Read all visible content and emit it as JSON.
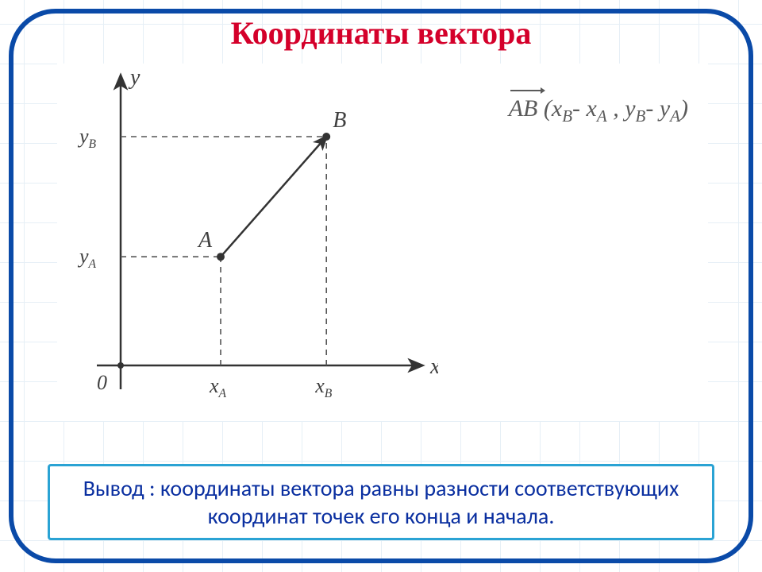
{
  "title": {
    "text": "Координаты вектора",
    "color": "#d4002a",
    "fontsize": 40
  },
  "frame": {
    "stroke": "#0a4aa8",
    "width": 6,
    "corner_radius": 60
  },
  "grid": {
    "cell": 50,
    "color": "#e6eff6"
  },
  "diagram": {
    "type": "vector-plot",
    "bg": "#ffffff",
    "axis_color": "#333333",
    "axis_width": 2.5,
    "dash_color": "#555555",
    "origin_label": "0",
    "x_axis_label": "x",
    "y_axis_label": "y",
    "x_ticks": [
      {
        "label": "x",
        "sub": "A",
        "pos": 0.35
      },
      {
        "label": "x",
        "sub": "B",
        "pos": 0.72
      }
    ],
    "y_ticks": [
      {
        "label": "y",
        "sub": "A",
        "pos": 0.38
      },
      {
        "label": "y",
        "sub": "B",
        "pos": 0.8
      }
    ],
    "points": {
      "A": {
        "x": 0.35,
        "y": 0.38,
        "label": "A"
      },
      "B": {
        "x": 0.72,
        "y": 0.8,
        "label": "B"
      }
    },
    "vector_color": "#333333",
    "vector_width": 2.5,
    "label_fontsize": 28,
    "tick_fontsize": 26
  },
  "formula": {
    "vector": "AB",
    "text_open": "(",
    "term1_a": "x",
    "term1_a_sub": "B",
    "minus": "-",
    "term1_b": "x",
    "term1_b_sub": "A",
    "comma": " ,  ",
    "term2_a": "y",
    "term2_a_sub": "B",
    "term2_b": "y",
    "term2_b_sub": "A",
    "text_close": ")",
    "color": "#5a5a5a",
    "fontsize": 30
  },
  "conclusion": {
    "text": "Вывод : координаты вектора равны разности соответствующих координат точек его конца и начала.",
    "text_color": "#0a2fa0",
    "border_color": "#2aa3d4",
    "fontsize": 28
  }
}
